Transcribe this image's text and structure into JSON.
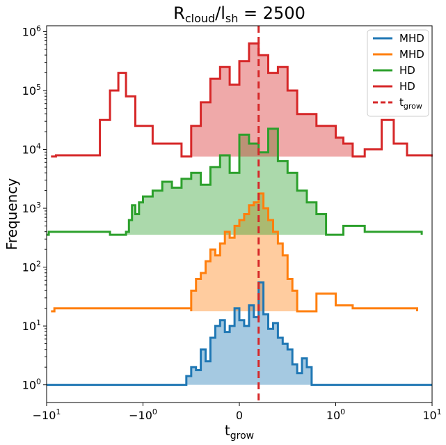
{
  "chart_data": {
    "type": "area",
    "title": {
      "main": "R",
      "sub1": "cloud",
      "mid": "/l",
      "sub2": "sh",
      "tail": " = 2500"
    },
    "xlabel": {
      "main": "t",
      "sub": "grow"
    },
    "ylabel": "Frequency",
    "xscale": "symlog",
    "yscale": "log",
    "ylim_exp": [
      -0.3,
      6.1
    ],
    "x_ticks": [
      {
        "v": -10,
        "base": "−10",
        "exp": "1"
      },
      {
        "v": -1,
        "base": "−10",
        "exp": "0"
      },
      {
        "v": 0,
        "text": "0"
      },
      {
        "v": 1,
        "base": "10",
        "exp": "0"
      },
      {
        "v": 10,
        "base": "10",
        "exp": "1"
      }
    ],
    "y_ticks": [
      {
        "e": 0,
        "base": "10",
        "exp": "0"
      },
      {
        "e": 1,
        "base": "10",
        "exp": "1"
      },
      {
        "e": 2,
        "base": "10",
        "exp": "2"
      },
      {
        "e": 3,
        "base": "10",
        "exp": "3"
      },
      {
        "e": 4,
        "base": "10",
        "exp": "4"
      },
      {
        "e": 5,
        "base": "10",
        "exp": "5"
      },
      {
        "e": 6,
        "base": "10",
        "exp": "6"
      }
    ],
    "vline": {
      "x": 0.2,
      "color": "#d62728"
    },
    "legend": {
      "placement": "top-right",
      "entries": [
        {
          "label": "MHD",
          "color": "#1f77b4"
        },
        {
          "label": "MHD",
          "color": "#ff7f0e"
        },
        {
          "label": "HD",
          "color": "#2ca02c"
        },
        {
          "label": "HD",
          "color": "#d62728"
        },
        {
          "label": "t",
          "sub": "grow",
          "color": "#d62728",
          "dashed": true
        }
      ]
    },
    "series": [
      {
        "color": "#1f77b4",
        "baseline_exp": 0,
        "fill_range": [
          -0.55,
          0.75
        ],
        "steps": [
          [
            -10.0,
            0
          ],
          [
            -9.7,
            0
          ],
          [
            -8.4,
            0
          ],
          [
            -7.7,
            0
          ],
          [
            -7.2,
            0
          ],
          [
            -6.3,
            0
          ],
          [
            -5.6,
            0
          ],
          [
            -4.9,
            0
          ],
          [
            -4.3,
            0
          ],
          [
            -3.8,
            0
          ],
          [
            -3.1,
            0
          ],
          [
            -2.5,
            0
          ],
          [
            -2.0,
            0
          ],
          [
            -1.6,
            0
          ],
          [
            -1.3,
            0
          ],
          [
            -1.0,
            0
          ],
          [
            -0.85,
            0
          ],
          [
            -0.7,
            0
          ],
          [
            -0.55,
            0.15
          ],
          [
            -0.5,
            0.3
          ],
          [
            -0.45,
            0.25
          ],
          [
            -0.4,
            0.6
          ],
          [
            -0.35,
            0.4
          ],
          [
            -0.3,
            0.8
          ],
          [
            -0.25,
            1.0
          ],
          [
            -0.2,
            1.1
          ],
          [
            -0.15,
            0.9
          ],
          [
            -0.1,
            1.0
          ],
          [
            -0.05,
            1.3
          ],
          [
            0.0,
            1.1
          ],
          [
            0.05,
            1.0
          ],
          [
            0.1,
            1.35
          ],
          [
            0.15,
            1.15
          ],
          [
            0.2,
            1.74
          ],
          [
            0.25,
            1.2
          ],
          [
            0.3,
            0.95
          ],
          [
            0.35,
            1.05
          ],
          [
            0.4,
            0.8
          ],
          [
            0.45,
            0.7
          ],
          [
            0.5,
            0.6
          ],
          [
            0.55,
            0.35
          ],
          [
            0.6,
            0.2
          ],
          [
            0.65,
            0.45
          ],
          [
            0.7,
            0.3
          ],
          [
            0.75,
            0.0
          ],
          [
            1.5,
            0
          ],
          [
            2.5,
            0
          ],
          [
            3.0,
            0
          ],
          [
            3.4,
            0
          ],
          [
            3.8,
            0
          ],
          [
            4.2,
            0
          ],
          [
            4.5,
            0
          ],
          [
            4.9,
            0
          ],
          [
            5.6,
            0
          ],
          [
            6.2,
            0
          ],
          [
            6.8,
            0
          ],
          [
            9.95,
            0
          ]
        ]
      },
      {
        "color": "#ff7f0e",
        "baseline_exp": 1.25,
        "fill_range": [
          -0.5,
          0.6
        ],
        "steps": [
          [
            -9.0,
            1.25
          ],
          [
            -8.3,
            1.3
          ],
          [
            -6.5,
            1.3
          ],
          [
            -5.0,
            1.3
          ],
          [
            -2.5,
            1.3
          ],
          [
            -0.5,
            1.25
          ],
          [
            -0.5,
            1.6
          ],
          [
            -0.45,
            1.8
          ],
          [
            -0.4,
            1.9
          ],
          [
            -0.35,
            2.1
          ],
          [
            -0.3,
            2.3
          ],
          [
            -0.25,
            2.2
          ],
          [
            -0.2,
            2.4
          ],
          [
            -0.15,
            2.6
          ],
          [
            -0.1,
            2.5
          ],
          [
            -0.05,
            2.7
          ],
          [
            0.0,
            2.8
          ],
          [
            0.05,
            2.9
          ],
          [
            0.1,
            3.05
          ],
          [
            0.15,
            3.1
          ],
          [
            0.2,
            3.25
          ],
          [
            0.25,
            3.0
          ],
          [
            0.3,
            2.8
          ],
          [
            0.35,
            2.6
          ],
          [
            0.4,
            2.4
          ],
          [
            0.45,
            2.2
          ],
          [
            0.5,
            1.8
          ],
          [
            0.55,
            1.6
          ],
          [
            0.6,
            1.25
          ],
          [
            0.8,
            1.55
          ],
          [
            1.0,
            1.35
          ],
          [
            1.5,
            1.3
          ],
          [
            3.0,
            1.3
          ],
          [
            5.0,
            1.3
          ],
          [
            6.0,
            1.3
          ],
          [
            7.0,
            1.25
          ]
        ]
      },
      {
        "color": "#2ca02c",
        "baseline_exp": 2.55,
        "fill_range": [
          -1.5,
          0.9
        ],
        "steps": [
          [
            -10.0,
            2.55
          ],
          [
            -9.5,
            2.6
          ],
          [
            -8.0,
            2.6
          ],
          [
            -6.5,
            2.6
          ],
          [
            -5.0,
            2.6
          ],
          [
            -3.8,
            2.6
          ],
          [
            -3.0,
            2.6
          ],
          [
            -2.2,
            2.55
          ],
          [
            -1.5,
            2.6
          ],
          [
            -1.4,
            2.8
          ],
          [
            -1.3,
            3.05
          ],
          [
            -1.2,
            2.9
          ],
          [
            -1.1,
            3.1
          ],
          [
            -1.0,
            3.2
          ],
          [
            -0.9,
            3.3
          ],
          [
            -0.8,
            3.45
          ],
          [
            -0.7,
            3.35
          ],
          [
            -0.6,
            3.5
          ],
          [
            -0.5,
            3.6
          ],
          [
            -0.4,
            3.4
          ],
          [
            -0.3,
            3.7
          ],
          [
            -0.2,
            3.9
          ],
          [
            -0.1,
            3.6
          ],
          [
            0.0,
            4.25
          ],
          [
            0.1,
            4.1
          ],
          [
            0.2,
            3.95
          ],
          [
            0.3,
            4.35
          ],
          [
            0.4,
            3.8
          ],
          [
            0.5,
            3.6
          ],
          [
            0.6,
            3.3
          ],
          [
            0.7,
            3.1
          ],
          [
            0.8,
            2.9
          ],
          [
            0.9,
            2.55
          ],
          [
            1.2,
            2.7
          ],
          [
            2.0,
            2.6
          ],
          [
            3.5,
            2.6
          ],
          [
            5.0,
            2.6
          ],
          [
            6.5,
            2.6
          ],
          [
            7.8,
            2.55
          ]
        ]
      },
      {
        "color": "#d62728",
        "baseline_exp": 3.88,
        "fill_range": [
          -0.6,
          1.5
        ],
        "steps": [
          [
            -9.0,
            3.88
          ],
          [
            -8.0,
            3.9
          ],
          [
            -6.5,
            3.9
          ],
          [
            -4.5,
            3.9
          ],
          [
            -3.5,
            3.9
          ],
          [
            -2.8,
            4.5
          ],
          [
            -2.2,
            5.0
          ],
          [
            -1.8,
            5.3
          ],
          [
            -1.5,
            4.9
          ],
          [
            -1.2,
            4.4
          ],
          [
            -0.9,
            4.1
          ],
          [
            -0.6,
            3.88
          ],
          [
            -0.5,
            4.4
          ],
          [
            -0.4,
            4.8
          ],
          [
            -0.3,
            5.2
          ],
          [
            -0.2,
            5.4
          ],
          [
            -0.1,
            5.1
          ],
          [
            0.0,
            5.5
          ],
          [
            0.1,
            5.8
          ],
          [
            0.2,
            5.6
          ],
          [
            0.3,
            5.3
          ],
          [
            0.4,
            5.4
          ],
          [
            0.5,
            5.0
          ],
          [
            0.6,
            4.6
          ],
          [
            0.8,
            4.4
          ],
          [
            1.0,
            4.2
          ],
          [
            1.2,
            4.1
          ],
          [
            1.5,
            3.88
          ],
          [
            2.0,
            4.0
          ],
          [
            3.0,
            4.5
          ],
          [
            4.0,
            4.1
          ],
          [
            5.5,
            3.9
          ],
          [
            7.0,
            3.9
          ],
          [
            8.5,
            3.9
          ],
          [
            9.9,
            3.88
          ]
        ]
      }
    ]
  }
}
